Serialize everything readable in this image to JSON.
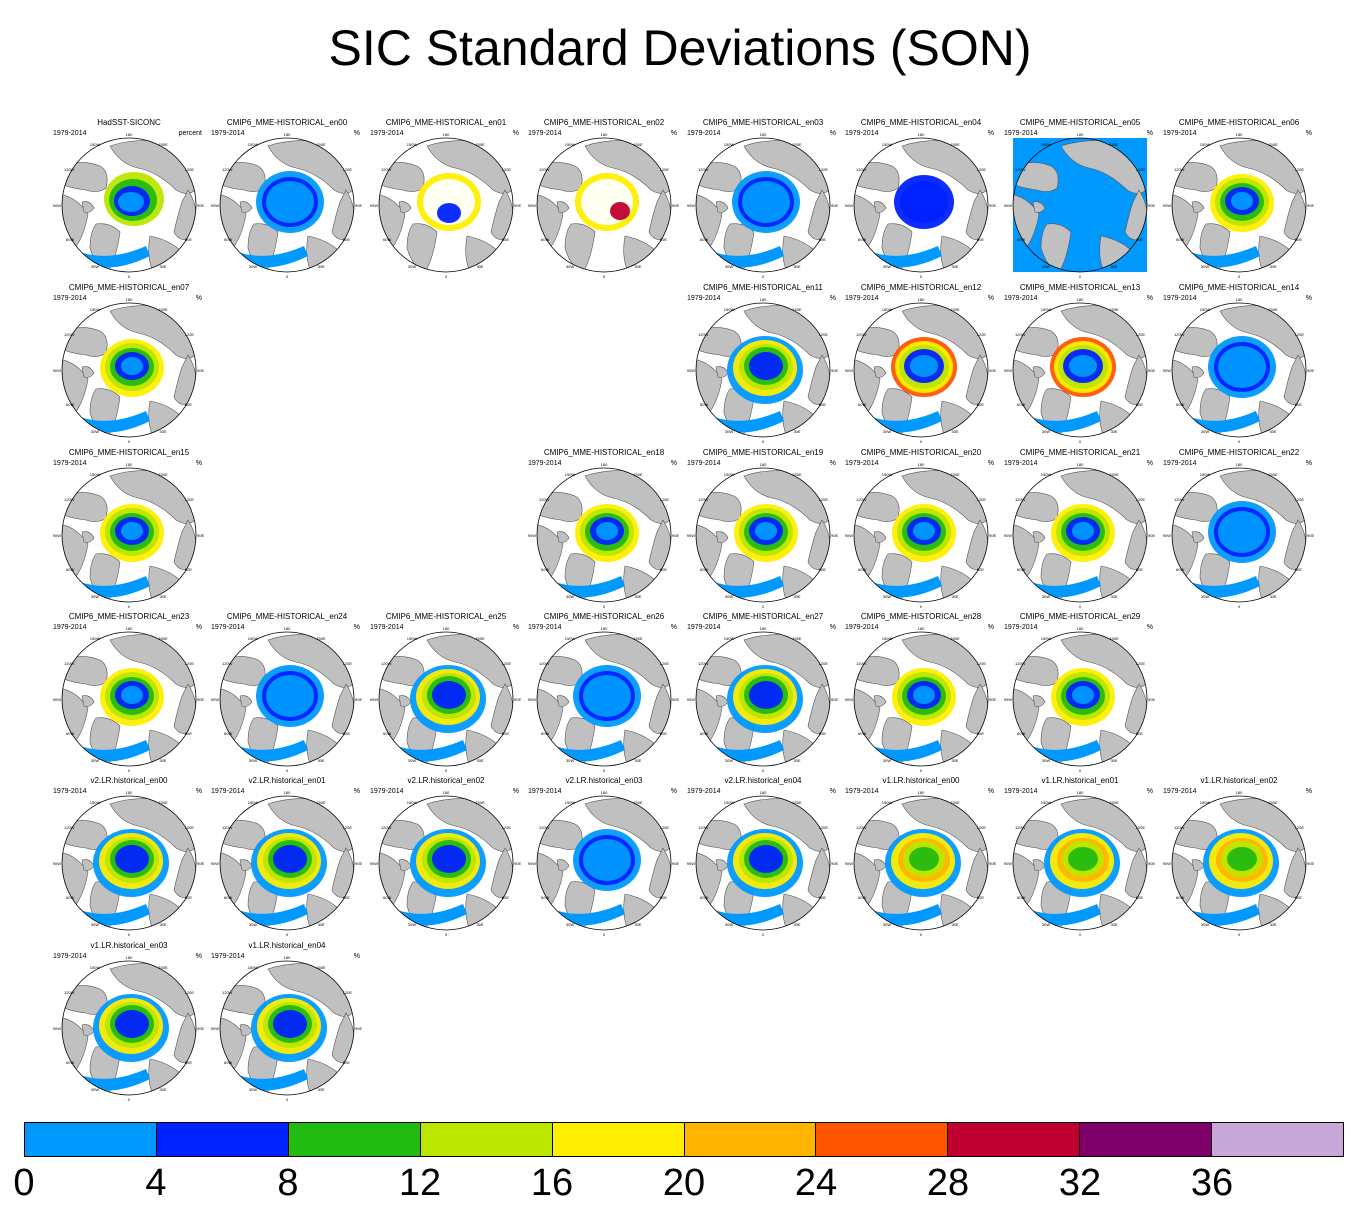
{
  "title": "SIC Standard Deviations (SON)",
  "panels": [
    {
      "title": "HadSST-SICONC",
      "years": "1979-2014",
      "unit": "percent",
      "style": "obs"
    },
    {
      "title": "CMIP6_MME-HISTORICAL_en00",
      "years": "1979-2014",
      "unit": "%",
      "style": "a"
    },
    {
      "title": "CMIP6_MME-HISTORICAL_en01",
      "years": "1979-2014",
      "unit": "%",
      "style": "white"
    },
    {
      "title": "CMIP6_MME-HISTORICAL_en02",
      "years": "1979-2014",
      "unit": "%",
      "style": "white2"
    },
    {
      "title": "CMIP6_MME-HISTORICAL_en03",
      "years": "1979-2014",
      "unit": "%",
      "style": "a"
    },
    {
      "title": "CMIP6_MME-HISTORICAL_en04",
      "years": "1979-2014",
      "unit": "%",
      "style": "blue"
    },
    {
      "title": "CMIP6_MME-HISTORICAL_en05",
      "years": "1979-2014",
      "unit": "%",
      "style": "flat"
    },
    {
      "title": "CMIP6_MME-HISTORICAL_en06",
      "years": "1979-2014",
      "unit": "%",
      "style": "c"
    },
    {
      "title": "CMIP6_MME-HISTORICAL_en07",
      "years": "1979-2014",
      "unit": "%",
      "style": "c"
    },
    {
      "title": "CMIP6_MME-HISTORICAL_en11",
      "years": "1979-2014",
      "unit": "%",
      "style": "b"
    },
    {
      "title": "CMIP6_MME-HISTORICAL_en12",
      "years": "1979-2014",
      "unit": "%",
      "style": "red"
    },
    {
      "title": "CMIP6_MME-HISTORICAL_en13",
      "years": "1979-2014",
      "unit": "%",
      "style": "red"
    },
    {
      "title": "CMIP6_MME-HISTORICAL_en14",
      "years": "1979-2014",
      "unit": "%",
      "style": "a"
    },
    {
      "title": "CMIP6_MME-HISTORICAL_en15",
      "years": "1979-2014",
      "unit": "%",
      "style": "c"
    },
    {
      "title": "CMIP6_MME-HISTORICAL_en18",
      "years": "1979-2014",
      "unit": "%",
      "style": "c"
    },
    {
      "title": "CMIP6_MME-HISTORICAL_en19",
      "years": "1979-2014",
      "unit": "%",
      "style": "c"
    },
    {
      "title": "CMIP6_MME-HISTORICAL_en20",
      "years": "1979-2014",
      "unit": "%",
      "style": "c"
    },
    {
      "title": "CMIP6_MME-HISTORICAL_en21",
      "years": "1979-2014",
      "unit": "%",
      "style": "c"
    },
    {
      "title": "CMIP6_MME-HISTORICAL_en22",
      "years": "1979-2014",
      "unit": "%",
      "style": "a"
    },
    {
      "title": "CMIP6_MME-HISTORICAL_en23",
      "years": "1979-2014",
      "unit": "%",
      "style": "c"
    },
    {
      "title": "CMIP6_MME-HISTORICAL_en24",
      "years": "1979-2014",
      "unit": "%",
      "style": "a"
    },
    {
      "title": "CMIP6_MME-HISTORICAL_en25",
      "years": "1979-2014",
      "unit": "%",
      "style": "b"
    },
    {
      "title": "CMIP6_MME-HISTORICAL_en26",
      "years": "1979-2014",
      "unit": "%",
      "style": "a"
    },
    {
      "title": "CMIP6_MME-HISTORICAL_en27",
      "years": "1979-2014",
      "unit": "%",
      "style": "b"
    },
    {
      "title": "CMIP6_MME-HISTORICAL_en28",
      "years": "1979-2014",
      "unit": "%",
      "style": "c"
    },
    {
      "title": "CMIP6_MME-HISTORICAL_en29",
      "years": "1979-2014",
      "unit": "%",
      "style": "c"
    },
    {
      "title": "v2.LR.historical_en00",
      "years": "1979-2014",
      "unit": "%",
      "style": "b"
    },
    {
      "title": "v2.LR.historical_en01",
      "years": "1979-2014",
      "unit": "%",
      "style": "b"
    },
    {
      "title": "v2.LR.historical_en02",
      "years": "1979-2014",
      "unit": "%",
      "style": "b"
    },
    {
      "title": "v2.LR.historical_en03",
      "years": "1979-2014",
      "unit": "%",
      "style": "a"
    },
    {
      "title": "v2.LR.historical_en04",
      "years": "1979-2014",
      "unit": "%",
      "style": "b"
    },
    {
      "title": "v1.LR.historical_en00",
      "years": "1979-2014",
      "unit": "%",
      "style": "y"
    },
    {
      "title": "v1.LR.historical_en01",
      "years": "1979-2014",
      "unit": "%",
      "style": "y"
    },
    {
      "title": "v1.LR.historical_en02",
      "years": "1979-2014",
      "unit": "%",
      "style": "y"
    },
    {
      "title": "v1.LR.historical_en03",
      "years": "1979-2014",
      "unit": "%",
      "style": "b"
    },
    {
      "title": "v1.LR.historical_en04",
      "years": "1979-2014",
      "unit": "%",
      "style": "b"
    }
  ],
  "map_labels": {
    "top": "180",
    "topleft": "150W",
    "topright": "150E",
    "ul": "120W",
    "ur": "120E",
    "left": "90W",
    "right": "90E",
    "ll": "60W",
    "lr": "60E",
    "bl": "30W",
    "br": "30E",
    "bottom": "0"
  },
  "colorbar": {
    "colors": [
      "#0099ff",
      "#0022ff",
      "#22bb11",
      "#bbe600",
      "#ffee00",
      "#ffb400",
      "#ff5500",
      "#c00030",
      "#80006a",
      "#c8a8d8"
    ],
    "labels": [
      "0",
      "4",
      "8",
      "12",
      "16",
      "20",
      "24",
      "28",
      "32",
      "36"
    ]
  },
  "land_color": "#c0c0c0"
}
